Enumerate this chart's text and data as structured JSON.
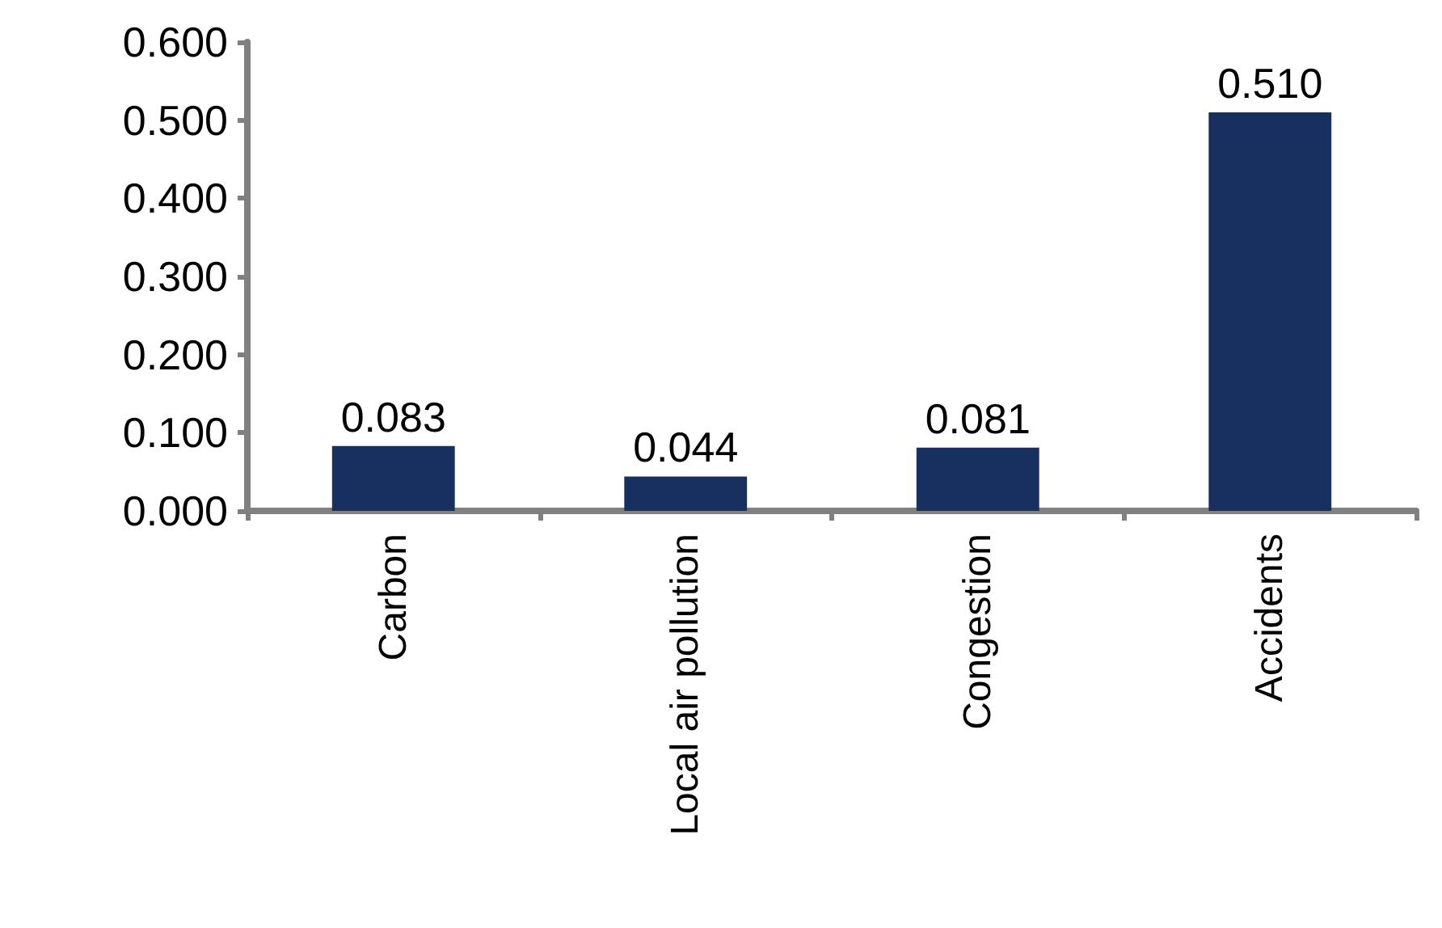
{
  "chart_data": {
    "type": "bar",
    "categories": [
      "Carbon",
      "Local air pollution",
      "Congestion",
      "Accidents"
    ],
    "values": [
      0.083,
      0.044,
      0.081,
      0.51
    ],
    "value_labels": [
      "0.083",
      "0.044",
      "0.081",
      "0.510"
    ],
    "color": "#17305f",
    "ylim": [
      0,
      0.6
    ],
    "yticks": [
      {
        "value": 0,
        "label": "0.000"
      },
      {
        "value": 0.1,
        "label": "0.100"
      },
      {
        "value": 0.2,
        "label": "0.200"
      },
      {
        "value": 0.3,
        "label": "0.300"
      },
      {
        "value": 0.4,
        "label": "0.400"
      },
      {
        "value": 0.5,
        "label": "0.500"
      },
      {
        "value": 0.6,
        "label": "0.600"
      }
    ],
    "grid": false
  }
}
